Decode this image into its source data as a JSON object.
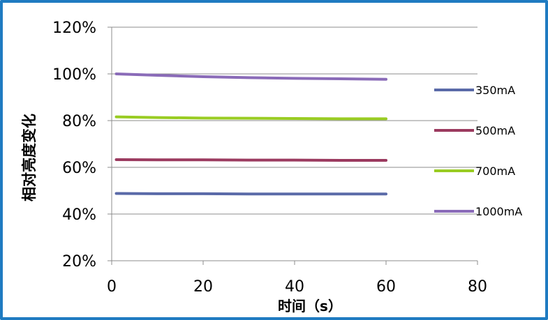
{
  "chart_data": {
    "type": "line",
    "xlabel": "时间（s）",
    "ylabel": "相对亮度变化",
    "xlim": [
      0,
      80
    ],
    "ylim": [
      0.2,
      1.2
    ],
    "x_ticks": [
      "0",
      "20",
      "40",
      "60",
      "80"
    ],
    "y_ticks": [
      "20%",
      "40%",
      "60%",
      "80%",
      "100%",
      "120%"
    ],
    "grid": "horizontal",
    "legend_position": "right",
    "x": [
      1,
      10,
      20,
      30,
      40,
      50,
      60
    ],
    "series": [
      {
        "name": "350mA",
        "color": "#5a6aa8",
        "values": [
          0.488,
          0.487,
          0.487,
          0.486,
          0.486,
          0.486,
          0.486
        ]
      },
      {
        "name": "500mA",
        "color": "#9b3a5f",
        "values": [
          0.633,
          0.632,
          0.632,
          0.631,
          0.631,
          0.63,
          0.63
        ]
      },
      {
        "name": "700mA",
        "color": "#99cc22",
        "values": [
          0.816,
          0.813,
          0.811,
          0.81,
          0.809,
          0.808,
          0.808
        ]
      },
      {
        "name": "1000mA",
        "color": "#8a6bb8",
        "values": [
          1.0,
          0.994,
          0.988,
          0.984,
          0.981,
          0.979,
          0.977
        ]
      }
    ]
  }
}
